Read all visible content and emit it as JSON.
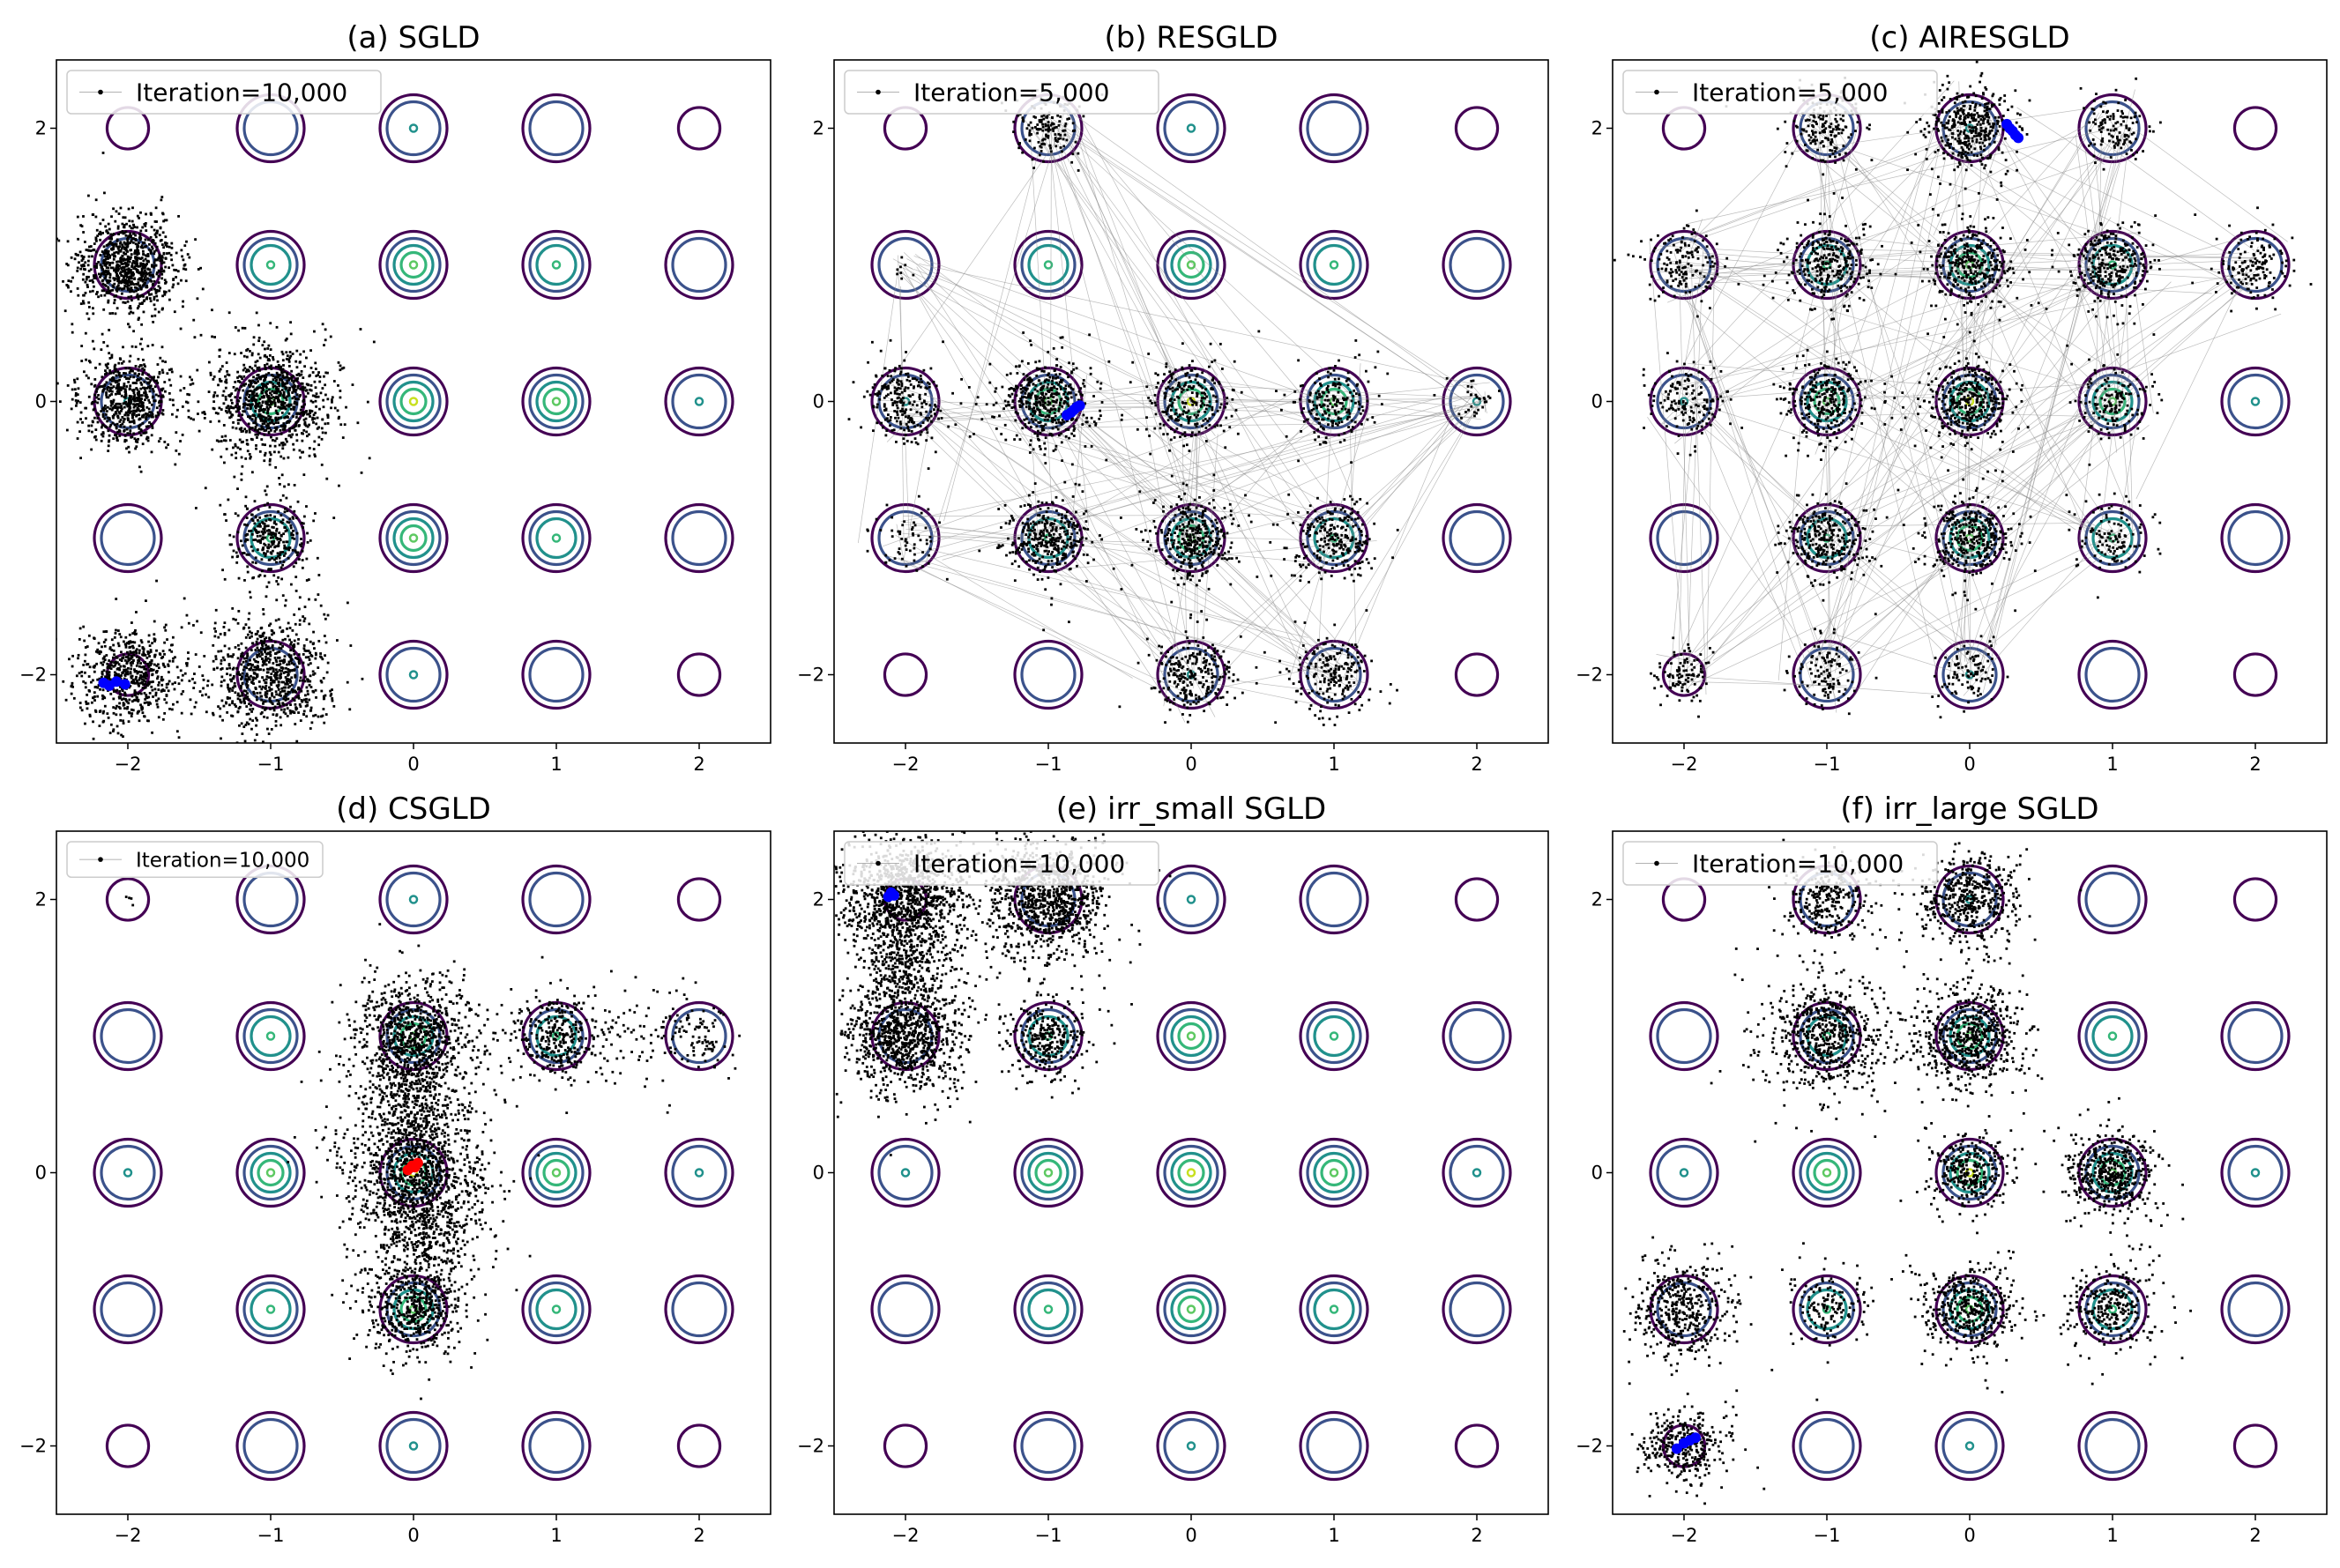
{
  "figure": {
    "layout": "2x3 grid of panels"
  },
  "chart_data": [
    {
      "type": "scatter",
      "title": "(a) SGLD",
      "legend": "Iteration=10,000",
      "legend_position": "upper-left",
      "xlim": [
        -2.5,
        2.5
      ],
      "ylim": [
        -2.5,
        2.5
      ],
      "xticks": [
        -2,
        -1,
        0,
        1,
        2
      ],
      "yticks": [
        -2,
        0,
        2
      ],
      "xtick_labels": [
        "−2",
        "−1",
        "0",
        "1",
        "2"
      ],
      "ytick_labels": [
        "−2",
        "0",
        "2"
      ],
      "sample_clusters": [
        {
          "x": -2,
          "y": 1,
          "n": 900,
          "spread": 0.17
        },
        {
          "x": -2,
          "y": 0,
          "n": 650,
          "spread": 0.16
        },
        {
          "x": -1,
          "y": 0,
          "n": 950,
          "spread": 0.2
        },
        {
          "x": -1,
          "y": -1,
          "n": 300,
          "spread": 0.13
        },
        {
          "x": -2,
          "y": -2,
          "n": 650,
          "spread": 0.17
        },
        {
          "x": -1,
          "y": -2,
          "n": 800,
          "spread": 0.2
        }
      ],
      "highlight_points": {
        "color": "#0000ff",
        "x": [
          -2.17,
          -2.13,
          -2.08,
          -2.02
        ],
        "y": [
          -2.06,
          -2.08,
          -2.05,
          -2.07
        ]
      }
    },
    {
      "type": "scatter",
      "title": "(b) RESGLD",
      "legend": "Iteration=5,000",
      "legend_position": "upper-left",
      "xlim": [
        -2.5,
        2.5
      ],
      "ylim": [
        -2.5,
        2.5
      ],
      "xticks": [
        -2,
        -1,
        0,
        1,
        2
      ],
      "yticks": [
        -2,
        0,
        2
      ],
      "xtick_labels": [
        "−2",
        "−1",
        "0",
        "1",
        "2"
      ],
      "ytick_labels": [
        "−2",
        "0",
        "2"
      ],
      "sample_clusters": [
        {
          "x": -1,
          "y": 2,
          "n": 150,
          "spread": 0.1
        },
        {
          "x": -2,
          "y": 1,
          "n": 8,
          "spread": 0.05
        },
        {
          "x": -2,
          "y": 0,
          "n": 250,
          "spread": 0.14
        },
        {
          "x": -1,
          "y": 0,
          "n": 450,
          "spread": 0.15
        },
        {
          "x": 0,
          "y": 0,
          "n": 250,
          "spread": 0.15
        },
        {
          "x": 1,
          "y": 0,
          "n": 200,
          "spread": 0.13
        },
        {
          "x": 2,
          "y": 0,
          "n": 30,
          "spread": 0.08
        },
        {
          "x": -2,
          "y": -1,
          "n": 60,
          "spread": 0.12
        },
        {
          "x": -1,
          "y": -1,
          "n": 350,
          "spread": 0.14
        },
        {
          "x": 0,
          "y": -1,
          "n": 350,
          "spread": 0.14
        },
        {
          "x": 1,
          "y": -1,
          "n": 250,
          "spread": 0.14
        },
        {
          "x": 0,
          "y": -2,
          "n": 250,
          "spread": 0.14
        },
        {
          "x": 1,
          "y": -2,
          "n": 200,
          "spread": 0.13
        }
      ],
      "jump_lines": 160,
      "highlight_points": {
        "color": "#0000ff",
        "x": [
          -0.87,
          -0.84,
          -0.82,
          -0.8,
          -0.78
        ],
        "y": [
          -0.1,
          -0.08,
          -0.06,
          -0.04,
          -0.03
        ]
      }
    },
    {
      "type": "scatter",
      "title": "(c) AIRESGLD",
      "legend": "Iteration=5,000",
      "legend_position": "upper-left",
      "xlim": [
        -2.5,
        2.5
      ],
      "ylim": [
        -2.5,
        2.5
      ],
      "xticks": [
        -2,
        -1,
        0,
        1,
        2
      ],
      "yticks": [
        -2,
        0,
        2
      ],
      "xtick_labels": [
        "−2",
        "−1",
        "0",
        "1",
        "2"
      ],
      "ytick_labels": [
        "−2",
        "0",
        "2"
      ],
      "sample_clusters": [
        {
          "x": -1,
          "y": 2,
          "n": 180,
          "spread": 0.12
        },
        {
          "x": 0,
          "y": 2,
          "n": 400,
          "spread": 0.14
        },
        {
          "x": 1,
          "y": 2,
          "n": 120,
          "spread": 0.11
        },
        {
          "x": -2,
          "y": 1,
          "n": 150,
          "spread": 0.13
        },
        {
          "x": -1,
          "y": 1,
          "n": 300,
          "spread": 0.14
        },
        {
          "x": 0,
          "y": 1,
          "n": 350,
          "spread": 0.14
        },
        {
          "x": 1,
          "y": 1,
          "n": 300,
          "spread": 0.14
        },
        {
          "x": 2,
          "y": 1,
          "n": 150,
          "spread": 0.12
        },
        {
          "x": -2,
          "y": 0,
          "n": 150,
          "spread": 0.13
        },
        {
          "x": -1,
          "y": 0,
          "n": 300,
          "spread": 0.14
        },
        {
          "x": 0,
          "y": 0,
          "n": 400,
          "spread": 0.15
        },
        {
          "x": 1,
          "y": 0,
          "n": 150,
          "spread": 0.12
        },
        {
          "x": -1,
          "y": -1,
          "n": 300,
          "spread": 0.14
        },
        {
          "x": 0,
          "y": -1,
          "n": 350,
          "spread": 0.14
        },
        {
          "x": 1,
          "y": -1,
          "n": 120,
          "spread": 0.12
        },
        {
          "x": -2,
          "y": -2,
          "n": 100,
          "spread": 0.1
        },
        {
          "x": -1,
          "y": -2,
          "n": 120,
          "spread": 0.11
        },
        {
          "x": 0,
          "y": -2,
          "n": 100,
          "spread": 0.1
        }
      ],
      "jump_lines": 220,
      "highlight_points": {
        "color": "#0000ff",
        "x": [
          0.26,
          0.28,
          0.3,
          0.32,
          0.34
        ],
        "y": [
          2.03,
          2.0,
          1.98,
          1.95,
          1.93
        ]
      }
    },
    {
      "type": "scatter",
      "title": "(d) CSGLD",
      "legend": "Iteration=10,000",
      "legend_position": "upper-left",
      "xlim": [
        -2.5,
        2.5
      ],
      "ylim": [
        -2.5,
        2.5
      ],
      "xticks": [
        -2,
        -1,
        0,
        1,
        2
      ],
      "yticks": [
        -2,
        0,
        2
      ],
      "xtick_labels": [
        "−2",
        "−1",
        "0",
        "1",
        "2"
      ],
      "ytick_labels": [
        "−2",
        "0",
        "2"
      ],
      "sample_clusters": [
        {
          "x": 0,
          "y": 1,
          "n": 900,
          "spread": 0.2
        },
        {
          "x": 0,
          "y": 0.5,
          "n": 300,
          "spread": 0.15
        },
        {
          "x": 0,
          "y": 0,
          "n": 1100,
          "spread": 0.23
        },
        {
          "x": 0.1,
          "y": -0.5,
          "n": 300,
          "spread": 0.15
        },
        {
          "x": 0,
          "y": -1,
          "n": 550,
          "spread": 0.17
        },
        {
          "x": 1,
          "y": 1,
          "n": 350,
          "spread": 0.15
        },
        {
          "x": 1.6,
          "y": 1,
          "n": 80,
          "spread": 0.2
        },
        {
          "x": 2,
          "y": 1,
          "n": 80,
          "spread": 0.12
        },
        {
          "x": -2,
          "y": 2,
          "n": 4,
          "spread": 0.03
        }
      ],
      "highlight_points": {
        "color": "#ff0000",
        "x": [
          -0.04,
          -0.01,
          0.01,
          0.03
        ],
        "y": [
          0.02,
          0.05,
          0.04,
          0.07
        ]
      }
    },
    {
      "type": "scatter",
      "title": "(e) irr_small SGLD",
      "legend": "Iteration=10,000",
      "legend_position": "upper-left",
      "xlim": [
        -2.5,
        2.5
      ],
      "ylim": [
        -2.5,
        2.5
      ],
      "xticks": [
        -2,
        -1,
        0,
        1,
        2
      ],
      "yticks": [
        -2,
        0,
        2
      ],
      "xtick_labels": [
        "−2",
        "−1",
        "0",
        "1",
        "2"
      ],
      "ytick_labels": [
        "−2",
        "0",
        "2"
      ],
      "sample_clusters": [
        {
          "x": -2,
          "y": 2,
          "n": 1200,
          "spread": 0.22
        },
        {
          "x": -1,
          "y": 2,
          "n": 1000,
          "spread": 0.2
        },
        {
          "x": -2,
          "y": 1,
          "n": 950,
          "spread": 0.2
        },
        {
          "x": -1,
          "y": 1,
          "n": 300,
          "spread": 0.14
        },
        {
          "x": -2,
          "y": 1.5,
          "n": 250,
          "spread": 0.15
        }
      ],
      "highlight_points": {
        "color": "#0000ff",
        "x": [
          -2.12,
          -2.1,
          -2.08
        ],
        "y": [
          2.02,
          2.05,
          2.03
        ]
      }
    },
    {
      "type": "scatter",
      "title": "(f) irr_large SGLD",
      "legend": "Iteration=10,000",
      "legend_position": "upper-left",
      "xlim": [
        -2.5,
        2.5
      ],
      "ylim": [
        -2.5,
        2.5
      ],
      "xticks": [
        -2,
        -1,
        0,
        1,
        2
      ],
      "yticks": [
        -2,
        0,
        2
      ],
      "xtick_labels": [
        "−2",
        "−1",
        "0",
        "1",
        "2"
      ],
      "ytick_labels": [
        "−2",
        "0",
        "2"
      ],
      "sample_clusters": [
        {
          "x": -1,
          "y": 2,
          "n": 300,
          "spread": 0.14
        },
        {
          "x": 0,
          "y": 2,
          "n": 500,
          "spread": 0.16
        },
        {
          "x": -1,
          "y": 1,
          "n": 650,
          "spread": 0.2
        },
        {
          "x": 0,
          "y": 1,
          "n": 650,
          "spread": 0.18
        },
        {
          "x": 0,
          "y": 0,
          "n": 300,
          "spread": 0.13
        },
        {
          "x": 1,
          "y": 0,
          "n": 500,
          "spread": 0.15
        },
        {
          "x": -2,
          "y": -1,
          "n": 450,
          "spread": 0.17
        },
        {
          "x": -1,
          "y": -1,
          "n": 150,
          "spread": 0.13
        },
        {
          "x": 0,
          "y": -1,
          "n": 450,
          "spread": 0.16
        },
        {
          "x": 1,
          "y": -1,
          "n": 300,
          "spread": 0.15
        },
        {
          "x": -2,
          "y": -2,
          "n": 350,
          "spread": 0.14
        }
      ],
      "highlight_points": {
        "color": "#0000ff",
        "x": [
          -2.05,
          -2.0,
          -1.96,
          -1.92
        ],
        "y": [
          -2.02,
          -1.98,
          -1.96,
          -1.94
        ]
      }
    }
  ],
  "density_modes": [
    {
      "x": -2,
      "y": 2,
      "level": 1
    },
    {
      "x": -1,
      "y": 2,
      "level": 2
    },
    {
      "x": 0,
      "y": 2,
      "level": 3
    },
    {
      "x": 1,
      "y": 2,
      "level": 2
    },
    {
      "x": 2,
      "y": 2,
      "level": 1
    },
    {
      "x": -2,
      "y": 1,
      "level": 2
    },
    {
      "x": -1,
      "y": 1,
      "level": 4
    },
    {
      "x": 0,
      "y": 1,
      "level": 5
    },
    {
      "x": 1,
      "y": 1,
      "level": 4
    },
    {
      "x": 2,
      "y": 1,
      "level": 2
    },
    {
      "x": -2,
      "y": 0,
      "level": 3
    },
    {
      "x": -1,
      "y": 0,
      "level": 5
    },
    {
      "x": 0,
      "y": 0,
      "level": 6
    },
    {
      "x": 1,
      "y": 0,
      "level": 5
    },
    {
      "x": 2,
      "y": 0,
      "level": 3
    },
    {
      "x": -2,
      "y": -1,
      "level": 2
    },
    {
      "x": -1,
      "y": -1,
      "level": 4
    },
    {
      "x": 0,
      "y": -1,
      "level": 5
    },
    {
      "x": 1,
      "y": -1,
      "level": 4
    },
    {
      "x": 2,
      "y": -1,
      "level": 2
    },
    {
      "x": -2,
      "y": -2,
      "level": 1
    },
    {
      "x": -1,
      "y": -2,
      "level": 2
    },
    {
      "x": 0,
      "y": -2,
      "level": 3
    },
    {
      "x": 1,
      "y": -2,
      "level": 2
    },
    {
      "x": 2,
      "y": -2,
      "level": 1
    }
  ],
  "contour_colors": [
    "#440154",
    "#3b528b",
    "#21918c",
    "#35b779",
    "#5ec962",
    "#c8e020"
  ],
  "colors": {
    "samples": "#000000",
    "jump_lines": "#888888",
    "axes": "#000000"
  }
}
